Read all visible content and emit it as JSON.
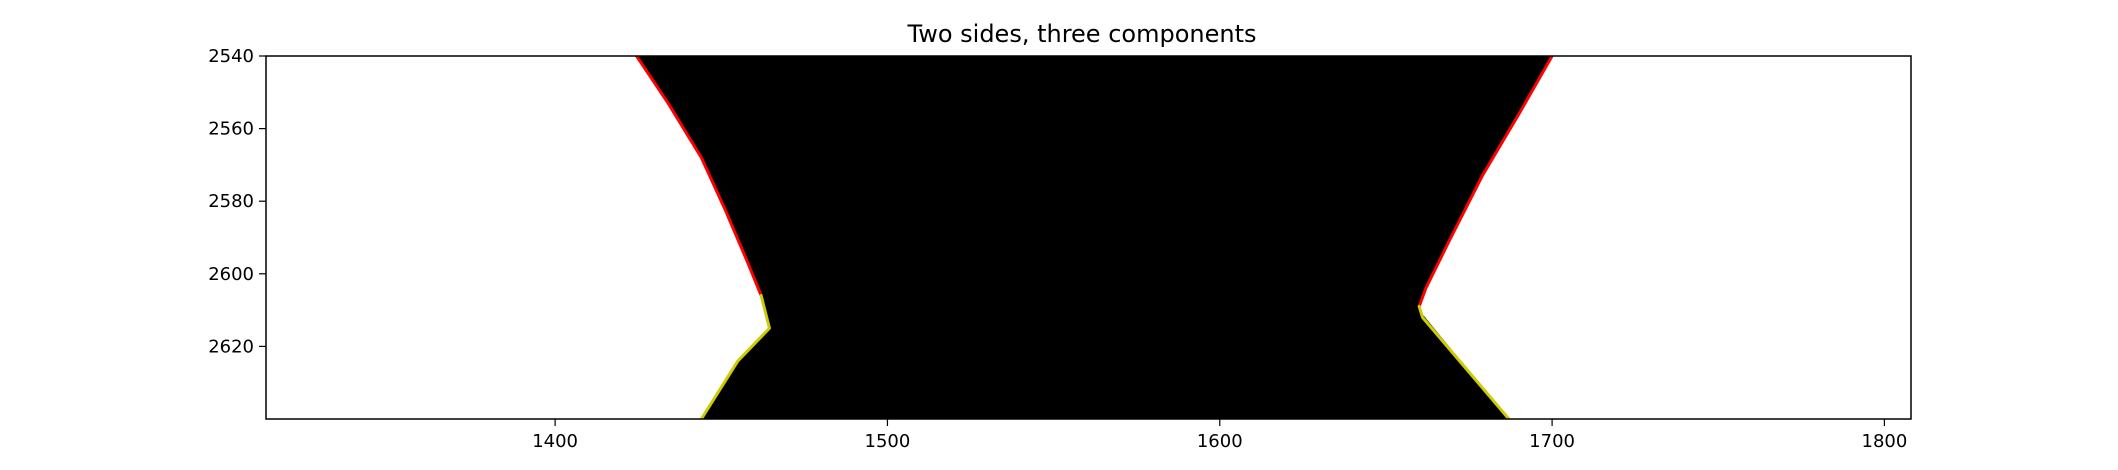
{
  "chart_data": {
    "type": "line",
    "title": "Two sides, three components",
    "xlabel": "",
    "ylabel": "",
    "xlim": [
      1313,
      1808
    ],
    "ylim": [
      2640,
      2540
    ],
    "y_axis_inverted": true,
    "grid": false,
    "x_ticks": [
      1400,
      1500,
      1600,
      1700,
      1800
    ],
    "y_ticks": [
      2540,
      2560,
      2580,
      2600,
      2620
    ],
    "x_tick_labels": [
      "1400",
      "1500",
      "1600",
      "1700",
      "1800"
    ],
    "y_tick_labels": [
      "2540",
      "2560",
      "2580",
      "2600",
      "2620"
    ],
    "background": {
      "description_free_region": "filled",
      "fill_color": "#000000",
      "outside_color": "#ffffff",
      "left_boundary": [
        [
          1424.5,
          2540
        ],
        [
          1434,
          2553
        ],
        [
          1444,
          2568
        ],
        [
          1451,
          2582
        ],
        [
          1458,
          2597
        ],
        [
          1462,
          2606
        ],
        [
          1464.5,
          2615
        ],
        [
          1455,
          2624
        ],
        [
          1444,
          2640
        ]
      ],
      "right_boundary": [
        [
          1700,
          2540
        ],
        [
          1690,
          2556
        ],
        [
          1679,
          2573
        ],
        [
          1669,
          2591
        ],
        [
          1662,
          2604
        ],
        [
          1660,
          2610
        ],
        [
          1687,
          2640
        ]
      ]
    },
    "series": [
      {
        "color": "#ff0000",
        "points": [
          [
            1424.5,
            2540
          ],
          [
            1434,
            2553
          ],
          [
            1444,
            2568
          ],
          [
            1451,
            2582
          ],
          [
            1458,
            2597
          ],
          [
            1462,
            2606
          ]
        ]
      },
      {
        "color": "#cccc00",
        "points": [
          [
            1462,
            2606
          ],
          [
            1464.5,
            2615
          ],
          [
            1455,
            2624
          ],
          [
            1444,
            2640
          ]
        ]
      },
      {
        "color": "#ff0000",
        "points": [
          [
            1700,
            2540
          ],
          [
            1690,
            2556
          ],
          [
            1679,
            2573
          ],
          [
            1669,
            2591
          ],
          [
            1662,
            2604
          ],
          [
            1660,
            2609
          ]
        ]
      },
      {
        "color": "#cccc00",
        "points": [
          [
            1660,
            2609
          ],
          [
            1661,
            2612
          ],
          [
            1687,
            2640
          ]
        ]
      }
    ]
  }
}
